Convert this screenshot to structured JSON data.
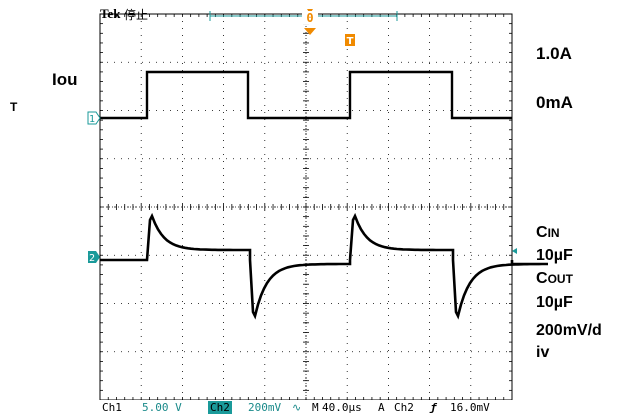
{
  "header": {
    "brand": "Tek",
    "state": "停止",
    "trigger_position_marker": "0",
    "trigger_level_marker": "T"
  },
  "left_labels": {
    "signal_name": "Iou",
    "signal_suffix": "T"
  },
  "right_labels": {
    "current_high": "1.0A",
    "current_low": "0mA",
    "cin_main": "C",
    "cin_sub": "IN",
    "cin_value": "10µF",
    "cout_main": "C",
    "cout_sub": "OUT",
    "cout_value": "10µF",
    "scale_line1": "200mV/d",
    "scale_line2": "iv"
  },
  "channel_markers": {
    "ch1": "1",
    "ch2": "2"
  },
  "status_bar": {
    "ch1_label": "Ch1",
    "ch1_scale": "5.00 V",
    "ch2_label": "Ch2",
    "ch2_scale": "200mV",
    "ch2_coupling": "∿",
    "timebase_label": "M",
    "timebase": "40.0µs",
    "trigger_mode": "A",
    "trigger_source": "Ch2",
    "trigger_slope": "ƒ",
    "trigger_level": "16.0mV"
  },
  "colors": {
    "trace": "#000000",
    "grid": "#000000",
    "trigger_marker": "#f08a00",
    "channel_marker": "#1a9a9a",
    "status_tag": "#1a9a9a"
  }
}
